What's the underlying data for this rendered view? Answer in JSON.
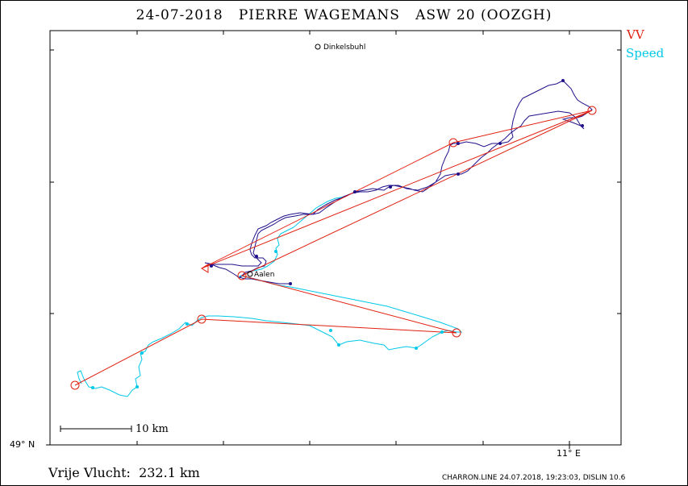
{
  "title": "24-07-2018   PIERRE WAGEMANS   ASW 20 (OOZGH)",
  "legend": {
    "vv": "VV",
    "speed": "Speed",
    "colors": {
      "task": "#e02010",
      "climb_track": "#20108a",
      "speed_track": "#00c8e8"
    }
  },
  "map": {
    "latitude_label": "49° N",
    "longitude_label": "11° E",
    "scale_label": "10 km",
    "towns": [
      "Dinkelsbuhl",
      "Aalen"
    ]
  },
  "distance_label": "Vrije Vlucht:  232.1 km",
  "footer": "CHARRON.LINE 24.07.2018, 19:23:03, DISLIN 10.6"
}
